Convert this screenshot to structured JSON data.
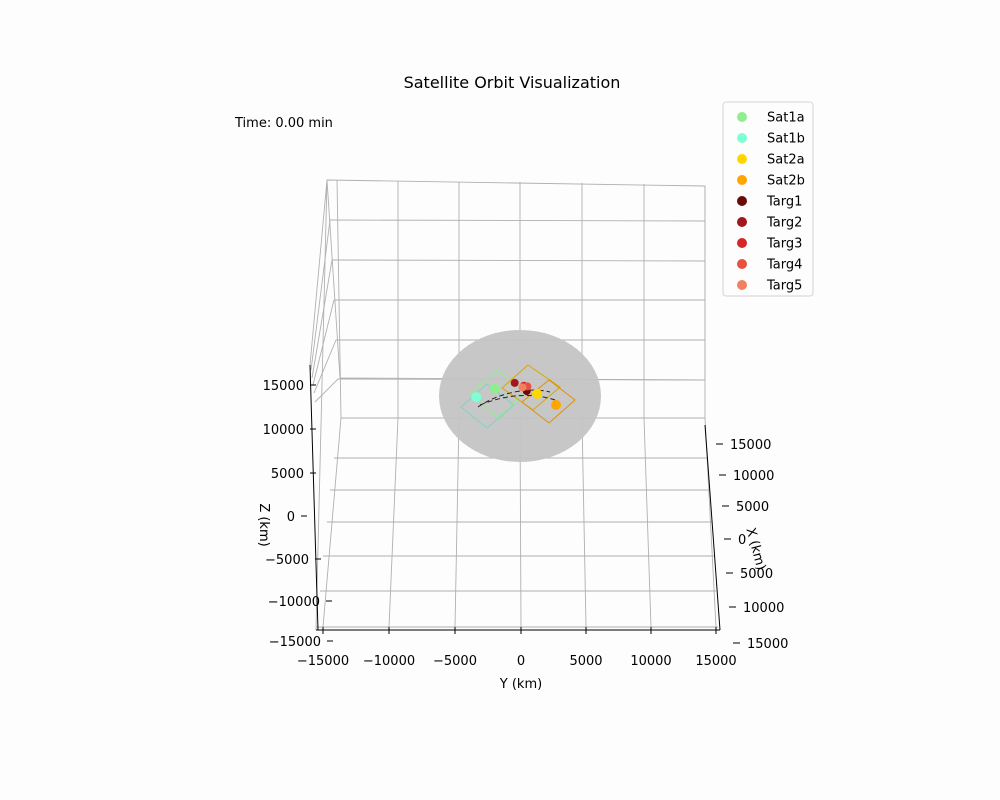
{
  "chart_data": {
    "type": "scatter",
    "title": "Satellite Orbit Visualization",
    "time_label": "Time: 0.00 min",
    "xlabel": "X (km)",
    "ylabel": "Y (km)",
    "zlabel": "Z (km)",
    "xlim": [
      -15000,
      15000
    ],
    "ylim": [
      -15000,
      15000
    ],
    "zlim": [
      -15000,
      15000
    ],
    "y_ticks": [
      "−15000",
      "−10000",
      "−5000",
      "0",
      "5000",
      "10000",
      "15000"
    ],
    "x_ticks": [
      "15000",
      "10000",
      "5000",
      "0",
      "5000",
      "10000",
      "15000"
    ],
    "z_ticks": [
      "15000",
      "10000",
      "5000",
      "0",
      "−5000",
      "−10000",
      "−15000"
    ],
    "grid": true,
    "legend_position": "top-right",
    "earth_color": "#c4c4c4",
    "series": [
      {
        "name": "Sat1a",
        "color": "#90ee90",
        "x": -1500,
        "y": -1800,
        "z": 300
      },
      {
        "name": "Sat1b",
        "color": "#7fffd4",
        "x": -2200,
        "y": -3200,
        "z": -800
      },
      {
        "name": "Sat2a",
        "color": "#ffd700",
        "x": 1200,
        "y": 1200,
        "z": 600
      },
      {
        "name": "Sat2b",
        "color": "#ffa500",
        "x": 2000,
        "y": 2600,
        "z": -300
      },
      {
        "name": "Targ1",
        "color": "#6b0a0a",
        "x": 300,
        "y": 500,
        "z": 600
      },
      {
        "name": "Targ2",
        "color": "#a0171c",
        "x": -200,
        "y": -400,
        "z": 1300
      },
      {
        "name": "Targ3",
        "color": "#d62728",
        "x": 100,
        "y": 300,
        "z": 1100
      },
      {
        "name": "Targ4",
        "color": "#e8503f",
        "x": 0,
        "y": 600,
        "z": 1000
      },
      {
        "name": "Targ5",
        "color": "#f28060",
        "x": 0,
        "y": 200,
        "z": 900
      }
    ]
  }
}
